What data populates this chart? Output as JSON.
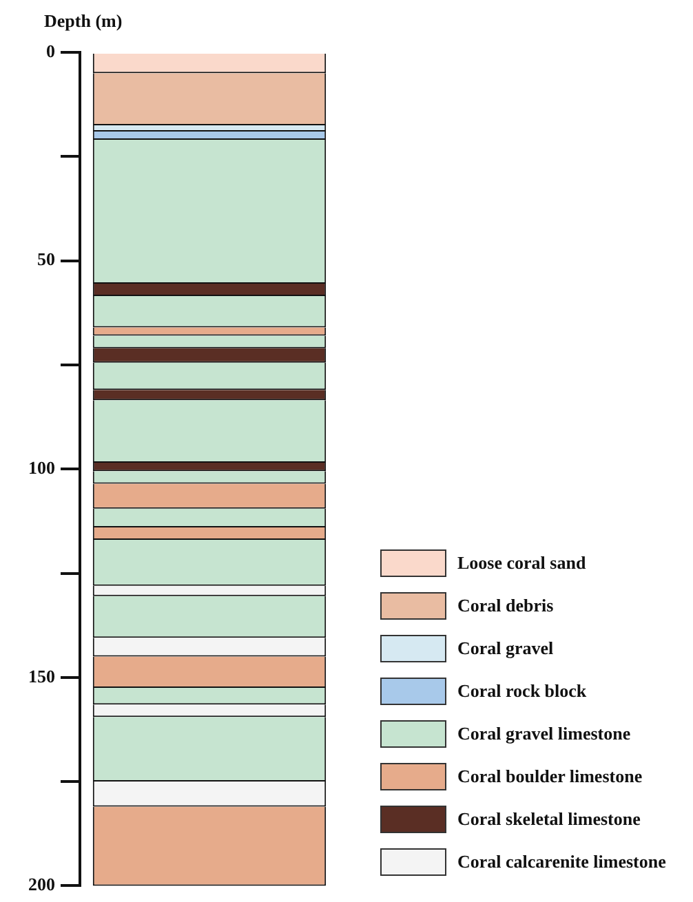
{
  "chart_data": {
    "type": "bar",
    "ylabel": "Depth (m)",
    "categories": [
      null
    ],
    "stacked": true,
    "ylim": [
      200,
      0
    ],
    "yticks": [
      0,
      {
        "value": 25,
        "label": null
      },
      50,
      {
        "value": 75,
        "label": null
      },
      100,
      {
        "value": 125,
        "label": null
      },
      150,
      {
        "value": 175,
        "label": null
      },
      200
    ],
    "grid": false,
    "tick_labels": "y",
    "legend": "bottom right",
    "series": [
      {
        "name": "Loose coral sand",
        "color": "#fad9cb",
        "values": [
          5
        ]
      },
      {
        "name": "Coral debris",
        "color": "#e9bca2",
        "values": [
          12.5
        ]
      },
      {
        "name": "Coral gravel",
        "color": "#d6e9f2",
        "values": [
          1.5
        ]
      },
      {
        "name": "Coral rock block",
        "color": "#a8c9ea",
        "values": [
          2
        ]
      },
      {
        "name": "Coral gravel limestone",
        "color": "#c6e4d0",
        "values": [
          34.5
        ]
      },
      {
        "color": "#5a2e24",
        "values": [
          3
        ]
      },
      {
        "color": "#c6e4d0",
        "values": [
          7.5
        ]
      },
      {
        "name": "Coral boulder limestone",
        "color": "#e6ab8b",
        "values": [
          2
        ]
      },
      {
        "color": "#c6e4d0",
        "values": [
          3
        ]
      },
      {
        "name": "Coral skeletal limestone",
        "color": "#5a2e24",
        "values": [
          3.5
        ]
      },
      {
        "color": "#c6e4d0",
        "values": [
          6.5
        ]
      },
      {
        "color": "#5a2e24",
        "values": [
          2.5
        ]
      },
      {
        "color": "#c6e4d0",
        "values": [
          15
        ]
      },
      {
        "color": "#5a2e24",
        "values": [
          2
        ]
      },
      {
        "color": "#c6e4d0",
        "values": [
          3
        ]
      },
      {
        "color": "#e6ab8b",
        "values": [
          6
        ]
      },
      {
        "color": "#c6e4d0",
        "values": [
          4.5
        ]
      },
      {
        "color": "#e6ab8b",
        "values": [
          3
        ]
      },
      {
        "color": "#c6e4d0",
        "values": [
          11
        ]
      },
      {
        "name": "Coral calcarenite limestone",
        "color": "#f4f4f4",
        "values": [
          2.5
        ]
      },
      {
        "color": "#c6e4d0",
        "values": [
          10
        ]
      },
      {
        "color": "#f4f4f4",
        "values": [
          4.5
        ]
      },
      {
        "color": "#e6ab8b",
        "values": [
          7.5
        ]
      },
      {
        "color": "#c6e4d0",
        "values": [
          4
        ]
      },
      {
        "color": "#f4f4f4",
        "values": [
          3
        ]
      },
      {
        "color": "#c6e4d0",
        "values": [
          15.5
        ]
      },
      {
        "color": "#f4f4f4",
        "values": [
          6
        ]
      },
      {
        "color": "#e6ab8b",
        "values": [
          19
        ]
      }
    ]
  }
}
